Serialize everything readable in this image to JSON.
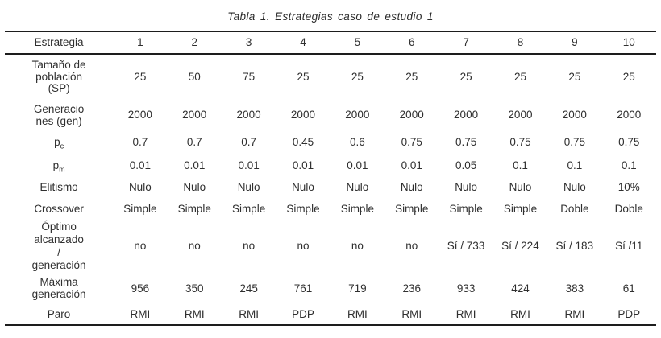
{
  "title": "Tabla 1. Estrategias caso de estudio 1",
  "table": {
    "header": {
      "label": "Estrategia",
      "columns": [
        "1",
        "2",
        "3",
        "4",
        "5",
        "6",
        "7",
        "8",
        "9",
        "10"
      ]
    },
    "rows": [
      {
        "label_lines": [
          "Tamaño de",
          "población",
          "(SP)"
        ],
        "values": [
          "25",
          "50",
          "75",
          "25",
          "25",
          "25",
          "25",
          "25",
          "25",
          "25"
        ]
      },
      {
        "label_lines": [
          "Generacio",
          "nes (gen)"
        ],
        "values": [
          "2000",
          "2000",
          "2000",
          "2000",
          "2000",
          "2000",
          "2000",
          "2000",
          "2000",
          "2000"
        ]
      },
      {
        "label_base": "p",
        "label_sub": "c",
        "values": [
          "0.7",
          "0.7",
          "0.7",
          "0.45",
          "0.6",
          "0.75",
          "0.75",
          "0.75",
          "0.75",
          "0.75"
        ]
      },
      {
        "label_base": "p",
        "label_sub": "m",
        "values": [
          "0.01",
          "0.01",
          "0.01",
          "0.01",
          "0.01",
          "0.01",
          "0.05",
          "0.1",
          "0.1",
          "0.1"
        ]
      },
      {
        "label": "Elitismo",
        "values": [
          "Nulo",
          "Nulo",
          "Nulo",
          "Nulo",
          "Nulo",
          "Nulo",
          "Nulo",
          "Nulo",
          "Nulo",
          "10%"
        ]
      },
      {
        "label": "Crossover",
        "values": [
          "Simple",
          "Simple",
          "Simple",
          "Simple",
          "Simple",
          "Simple",
          "Simple",
          "Simple",
          "Doble",
          "Doble"
        ]
      },
      {
        "label_lines": [
          "Óptimo",
          "alcanzado",
          "/",
          "generación"
        ],
        "values": [
          "no",
          "no",
          "no",
          "no",
          "no",
          "no",
          "Sí / 733",
          "Sí / 224",
          "Sí / 183",
          "Sí /11"
        ]
      },
      {
        "label_lines": [
          "Máxima",
          "generación"
        ],
        "values": [
          "956",
          "350",
          "245",
          "761",
          "719",
          "236",
          "933",
          "424",
          "383",
          "61"
        ]
      },
      {
        "label": "Paro",
        "values": [
          "RMI",
          "RMI",
          "RMI",
          "PDP",
          "RMI",
          "RMI",
          "RMI",
          "RMI",
          "RMI",
          "PDP"
        ]
      }
    ]
  }
}
